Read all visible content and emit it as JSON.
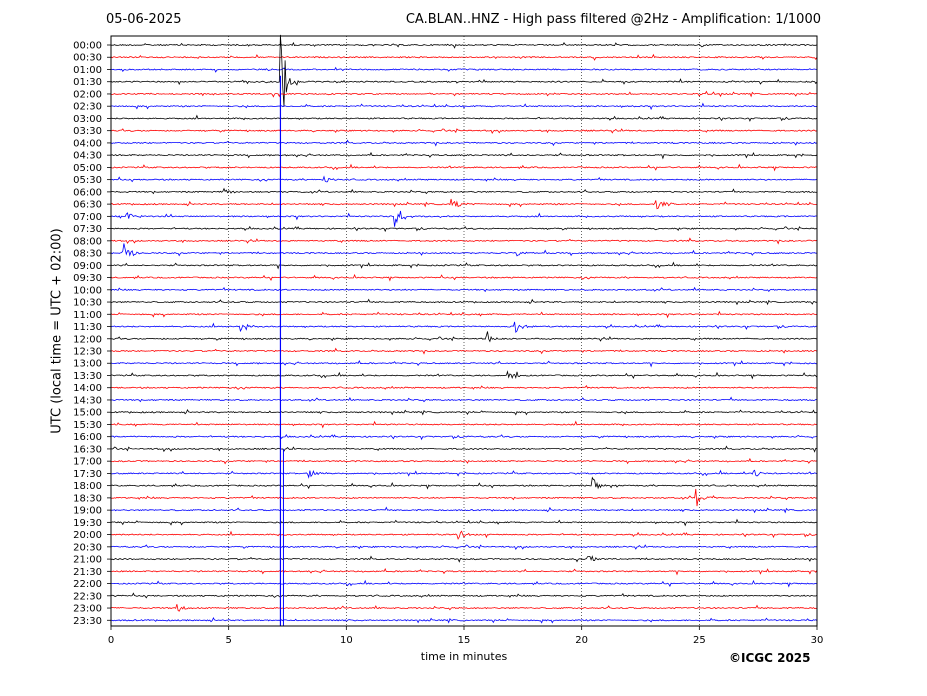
{
  "header": {
    "date": "05-06-2025",
    "title": "CA.BLAN..HNZ - High pass filtered @2Hz - Amplification: 1/1000"
  },
  "copyright": "©ICGC 2025",
  "colors": {
    "red": "#ff0000",
    "blue": "#0000ff",
    "grid": "#000000"
  },
  "chart_data": {
    "type": "line",
    "xlabel": "time in minutes",
    "ylabel": "UTC (local time = UTC + 02:00)",
    "xlim": [
      0,
      30
    ],
    "xticks": [
      0,
      5,
      10,
      15,
      20,
      25,
      30
    ],
    "vertical_gridlines": [
      5,
      10,
      15,
      20,
      25
    ],
    "rows": [
      "00:00",
      "00:30",
      "01:00",
      "01:30",
      "02:00",
      "02:30",
      "03:00",
      "03:30",
      "04:00",
      "04:30",
      "05:00",
      "05:30",
      "06:00",
      "06:30",
      "07:00",
      "07:30",
      "08:00",
      "08:30",
      "09:00",
      "09:30",
      "10:00",
      "10:30",
      "11:00",
      "11:30",
      "12:00",
      "12:30",
      "13:00",
      "13:30",
      "14:00",
      "14:30",
      "15:00",
      "15:30",
      "16:00",
      "16:30",
      "17:00",
      "17:30",
      "18:00",
      "18:30",
      "19:00",
      "19:30",
      "20:00",
      "20:30",
      "21:00",
      "21:30",
      "22:00",
      "22:30",
      "23:00",
      "23:30"
    ],
    "row_color_pattern": [
      "#000000",
      "#ff0000",
      "#0000ff"
    ],
    "events": [
      {
        "row": "01:30",
        "minute": 7.2,
        "amplitude": 10
      },
      {
        "row": "05:30",
        "minute": 9.0,
        "amplitude": 1.2
      },
      {
        "row": "06:00",
        "minute": 4.8,
        "amplitude": 1.0
      },
      {
        "row": "06:30",
        "minute": 14.5,
        "amplitude": 1.5
      },
      {
        "row": "06:30",
        "minute": 23.2,
        "amplitude": 1.6
      },
      {
        "row": "07:00",
        "minute": 0.7,
        "amplitude": 1.0
      },
      {
        "row": "07:00",
        "minute": 12.1,
        "amplitude": 2.5
      },
      {
        "row": "08:30",
        "minute": 0.5,
        "amplitude": 2.5
      },
      {
        "row": "08:30",
        "minute": 17.3,
        "amplitude": 0.8
      },
      {
        "row": "11:30",
        "minute": 5.5,
        "amplitude": 1.0
      },
      {
        "row": "11:30",
        "minute": 17.2,
        "amplitude": 1.2
      },
      {
        "row": "12:00",
        "minute": 16.0,
        "amplitude": 1.5
      },
      {
        "row": "13:30",
        "minute": 16.9,
        "amplitude": 1.0
      },
      {
        "row": "17:30",
        "minute": 8.4,
        "amplitude": 1.5
      },
      {
        "row": "17:30",
        "minute": 27.3,
        "amplitude": 1.0
      },
      {
        "row": "18:00",
        "minute": 20.5,
        "amplitude": 1.5
      },
      {
        "row": "18:30",
        "minute": 24.9,
        "amplitude": 1.8
      },
      {
        "row": "20:00",
        "minute": 14.8,
        "amplitude": 1.0
      },
      {
        "row": "21:00",
        "minute": 20.3,
        "amplitude": 1.0
      },
      {
        "row": "23:00",
        "minute": 2.8,
        "amplitude": 1.2
      }
    ]
  }
}
